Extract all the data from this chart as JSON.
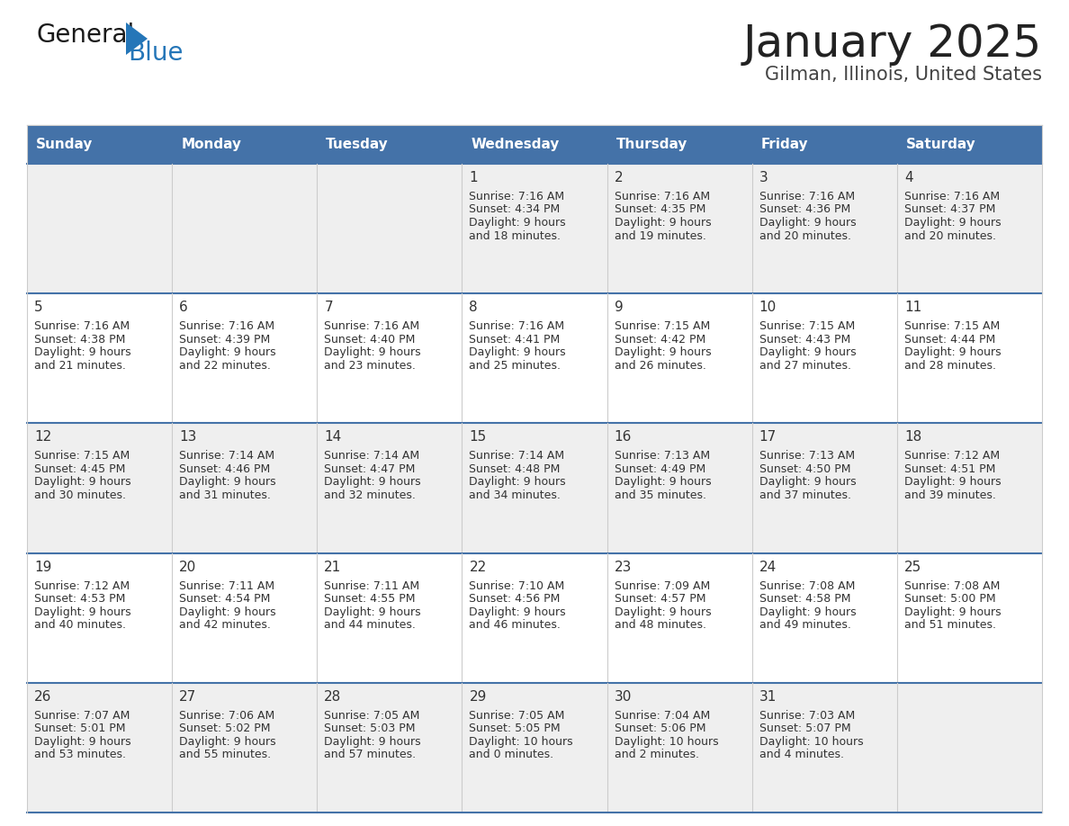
{
  "title": "January 2025",
  "subtitle": "Gilman, Illinois, United States",
  "header_bg_color": "#4472a8",
  "header_text_color": "#ffffff",
  "header_days": [
    "Sunday",
    "Monday",
    "Tuesday",
    "Wednesday",
    "Thursday",
    "Friday",
    "Saturday"
  ],
  "row_bg_colors": [
    "#efefef",
    "#ffffff",
    "#efefef",
    "#ffffff",
    "#efefef"
  ],
  "cell_text_color": "#333333",
  "day_num_color": "#333333",
  "border_color": "#4472a8",
  "col_sep_color": "#cccccc",
  "background_color": "#ffffff",
  "title_color": "#222222",
  "subtitle_color": "#444444",
  "logo_general_color": "#1a1a1a",
  "logo_blue_color": "#2576b8",
  "calendar_data": [
    [
      null,
      null,
      null,
      {
        "day": 1,
        "sunrise": "7:16 AM",
        "sunset": "4:34 PM",
        "daylight": "9 hours",
        "daylight2": "and 18 minutes."
      },
      {
        "day": 2,
        "sunrise": "7:16 AM",
        "sunset": "4:35 PM",
        "daylight": "9 hours",
        "daylight2": "and 19 minutes."
      },
      {
        "day": 3,
        "sunrise": "7:16 AM",
        "sunset": "4:36 PM",
        "daylight": "9 hours",
        "daylight2": "and 20 minutes."
      },
      {
        "day": 4,
        "sunrise": "7:16 AM",
        "sunset": "4:37 PM",
        "daylight": "9 hours",
        "daylight2": "and 20 minutes."
      }
    ],
    [
      {
        "day": 5,
        "sunrise": "7:16 AM",
        "sunset": "4:38 PM",
        "daylight": "9 hours",
        "daylight2": "and 21 minutes."
      },
      {
        "day": 6,
        "sunrise": "7:16 AM",
        "sunset": "4:39 PM",
        "daylight": "9 hours",
        "daylight2": "and 22 minutes."
      },
      {
        "day": 7,
        "sunrise": "7:16 AM",
        "sunset": "4:40 PM",
        "daylight": "9 hours",
        "daylight2": "and 23 minutes."
      },
      {
        "day": 8,
        "sunrise": "7:16 AM",
        "sunset": "4:41 PM",
        "daylight": "9 hours",
        "daylight2": "and 25 minutes."
      },
      {
        "day": 9,
        "sunrise": "7:15 AM",
        "sunset": "4:42 PM",
        "daylight": "9 hours",
        "daylight2": "and 26 minutes."
      },
      {
        "day": 10,
        "sunrise": "7:15 AM",
        "sunset": "4:43 PM",
        "daylight": "9 hours",
        "daylight2": "and 27 minutes."
      },
      {
        "day": 11,
        "sunrise": "7:15 AM",
        "sunset": "4:44 PM",
        "daylight": "9 hours",
        "daylight2": "and 28 minutes."
      }
    ],
    [
      {
        "day": 12,
        "sunrise": "7:15 AM",
        "sunset": "4:45 PM",
        "daylight": "9 hours",
        "daylight2": "and 30 minutes."
      },
      {
        "day": 13,
        "sunrise": "7:14 AM",
        "sunset": "4:46 PM",
        "daylight": "9 hours",
        "daylight2": "and 31 minutes."
      },
      {
        "day": 14,
        "sunrise": "7:14 AM",
        "sunset": "4:47 PM",
        "daylight": "9 hours",
        "daylight2": "and 32 minutes."
      },
      {
        "day": 15,
        "sunrise": "7:14 AM",
        "sunset": "4:48 PM",
        "daylight": "9 hours",
        "daylight2": "and 34 minutes."
      },
      {
        "day": 16,
        "sunrise": "7:13 AM",
        "sunset": "4:49 PM",
        "daylight": "9 hours",
        "daylight2": "and 35 minutes."
      },
      {
        "day": 17,
        "sunrise": "7:13 AM",
        "sunset": "4:50 PM",
        "daylight": "9 hours",
        "daylight2": "and 37 minutes."
      },
      {
        "day": 18,
        "sunrise": "7:12 AM",
        "sunset": "4:51 PM",
        "daylight": "9 hours",
        "daylight2": "and 39 minutes."
      }
    ],
    [
      {
        "day": 19,
        "sunrise": "7:12 AM",
        "sunset": "4:53 PM",
        "daylight": "9 hours",
        "daylight2": "and 40 minutes."
      },
      {
        "day": 20,
        "sunrise": "7:11 AM",
        "sunset": "4:54 PM",
        "daylight": "9 hours",
        "daylight2": "and 42 minutes."
      },
      {
        "day": 21,
        "sunrise": "7:11 AM",
        "sunset": "4:55 PM",
        "daylight": "9 hours",
        "daylight2": "and 44 minutes."
      },
      {
        "day": 22,
        "sunrise": "7:10 AM",
        "sunset": "4:56 PM",
        "daylight": "9 hours",
        "daylight2": "and 46 minutes."
      },
      {
        "day": 23,
        "sunrise": "7:09 AM",
        "sunset": "4:57 PM",
        "daylight": "9 hours",
        "daylight2": "and 48 minutes."
      },
      {
        "day": 24,
        "sunrise": "7:08 AM",
        "sunset": "4:58 PM",
        "daylight": "9 hours",
        "daylight2": "and 49 minutes."
      },
      {
        "day": 25,
        "sunrise": "7:08 AM",
        "sunset": "5:00 PM",
        "daylight": "9 hours",
        "daylight2": "and 51 minutes."
      }
    ],
    [
      {
        "day": 26,
        "sunrise": "7:07 AM",
        "sunset": "5:01 PM",
        "daylight": "9 hours",
        "daylight2": "and 53 minutes."
      },
      {
        "day": 27,
        "sunrise": "7:06 AM",
        "sunset": "5:02 PM",
        "daylight": "9 hours",
        "daylight2": "and 55 minutes."
      },
      {
        "day": 28,
        "sunrise": "7:05 AM",
        "sunset": "5:03 PM",
        "daylight": "9 hours",
        "daylight2": "and 57 minutes."
      },
      {
        "day": 29,
        "sunrise": "7:05 AM",
        "sunset": "5:05 PM",
        "daylight": "10 hours",
        "daylight2": "and 0 minutes."
      },
      {
        "day": 30,
        "sunrise": "7:04 AM",
        "sunset": "5:06 PM",
        "daylight": "10 hours",
        "daylight2": "and 2 minutes."
      },
      {
        "day": 31,
        "sunrise": "7:03 AM",
        "sunset": "5:07 PM",
        "daylight": "10 hours",
        "daylight2": "and 4 minutes."
      },
      null
    ]
  ]
}
